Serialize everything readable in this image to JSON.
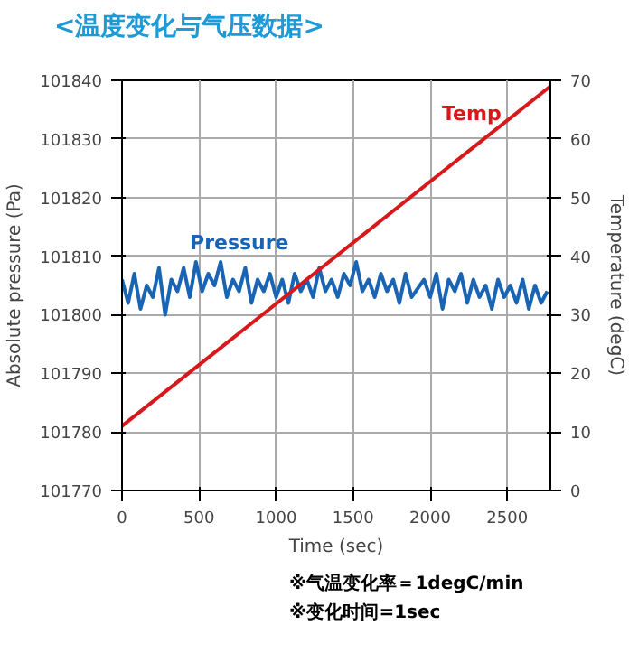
{
  "chart_data": {
    "type": "line",
    "title": "<温度变化与气压数据>",
    "xlabel": "Time (sec)",
    "ylabel": "Absolute pressure (Pa)",
    "y2label": "Temperature (degC)",
    "annotations": [
      "※气温变化率＝1degC/min",
      "※变化时间=1sec"
    ],
    "xlim": [
      0,
      2780
    ],
    "xticks": [
      0,
      500,
      1000,
      1500,
      2000,
      2500
    ],
    "ylim": [
      101770,
      101840
    ],
    "yticks": [
      101770,
      101780,
      101790,
      101800,
      101810,
      101820,
      101830,
      101840
    ],
    "y2lim": [
      0,
      70
    ],
    "y2ticks": [
      0,
      10,
      20,
      30,
      40,
      50,
      60,
      70
    ],
    "grid": true,
    "line_style": "solid",
    "marker": "none",
    "series": [
      {
        "name": "Pressure",
        "color": "#1a64b4",
        "x": [
          0,
          40,
          80,
          120,
          160,
          200,
          240,
          280,
          320,
          360,
          400,
          440,
          480,
          520,
          560,
          600,
          640,
          680,
          720,
          760,
          800,
          840,
          880,
          920,
          960,
          1000,
          1040,
          1080,
          1120,
          1160,
          1200,
          1240,
          1280,
          1320,
          1360,
          1400,
          1440,
          1480,
          1520,
          1560,
          1600,
          1640,
          1680,
          1720,
          1760,
          1800,
          1840,
          1880,
          1960,
          2000,
          2040,
          2080,
          2120,
          2160,
          2200,
          2240,
          2280,
          2320,
          2360,
          2400,
          2440,
          2480,
          2520,
          2560,
          2600,
          2640,
          2680,
          2720,
          2760
        ],
        "values": [
          101806,
          101802,
          101807,
          101801,
          101805,
          101803,
          101808,
          101800,
          101806,
          101804,
          101808,
          101803,
          101809,
          101804,
          101807,
          101805,
          101809,
          101803,
          101806,
          101804,
          101808,
          101802,
          101806,
          101804,
          101807,
          101803,
          101806,
          101802,
          101807,
          101804,
          101806,
          101803,
          101808,
          101804,
          101806,
          101803,
          101807,
          101805,
          101809,
          101804,
          101806,
          101803,
          101807,
          101804,
          101806,
          101802,
          101807,
          101803,
          101806,
          101803,
          101807,
          101801,
          101806,
          101804,
          101807,
          101802,
          101806,
          101803,
          101805,
          101801,
          101806,
          101803,
          101805,
          101802,
          101806,
          101801,
          101805,
          101802,
          101804
        ]
      },
      {
        "name": "Temp",
        "color": "#d7191c",
        "axis": "y2",
        "x": [
          0,
          2780
        ],
        "values": [
          11,
          69
        ]
      }
    ]
  }
}
